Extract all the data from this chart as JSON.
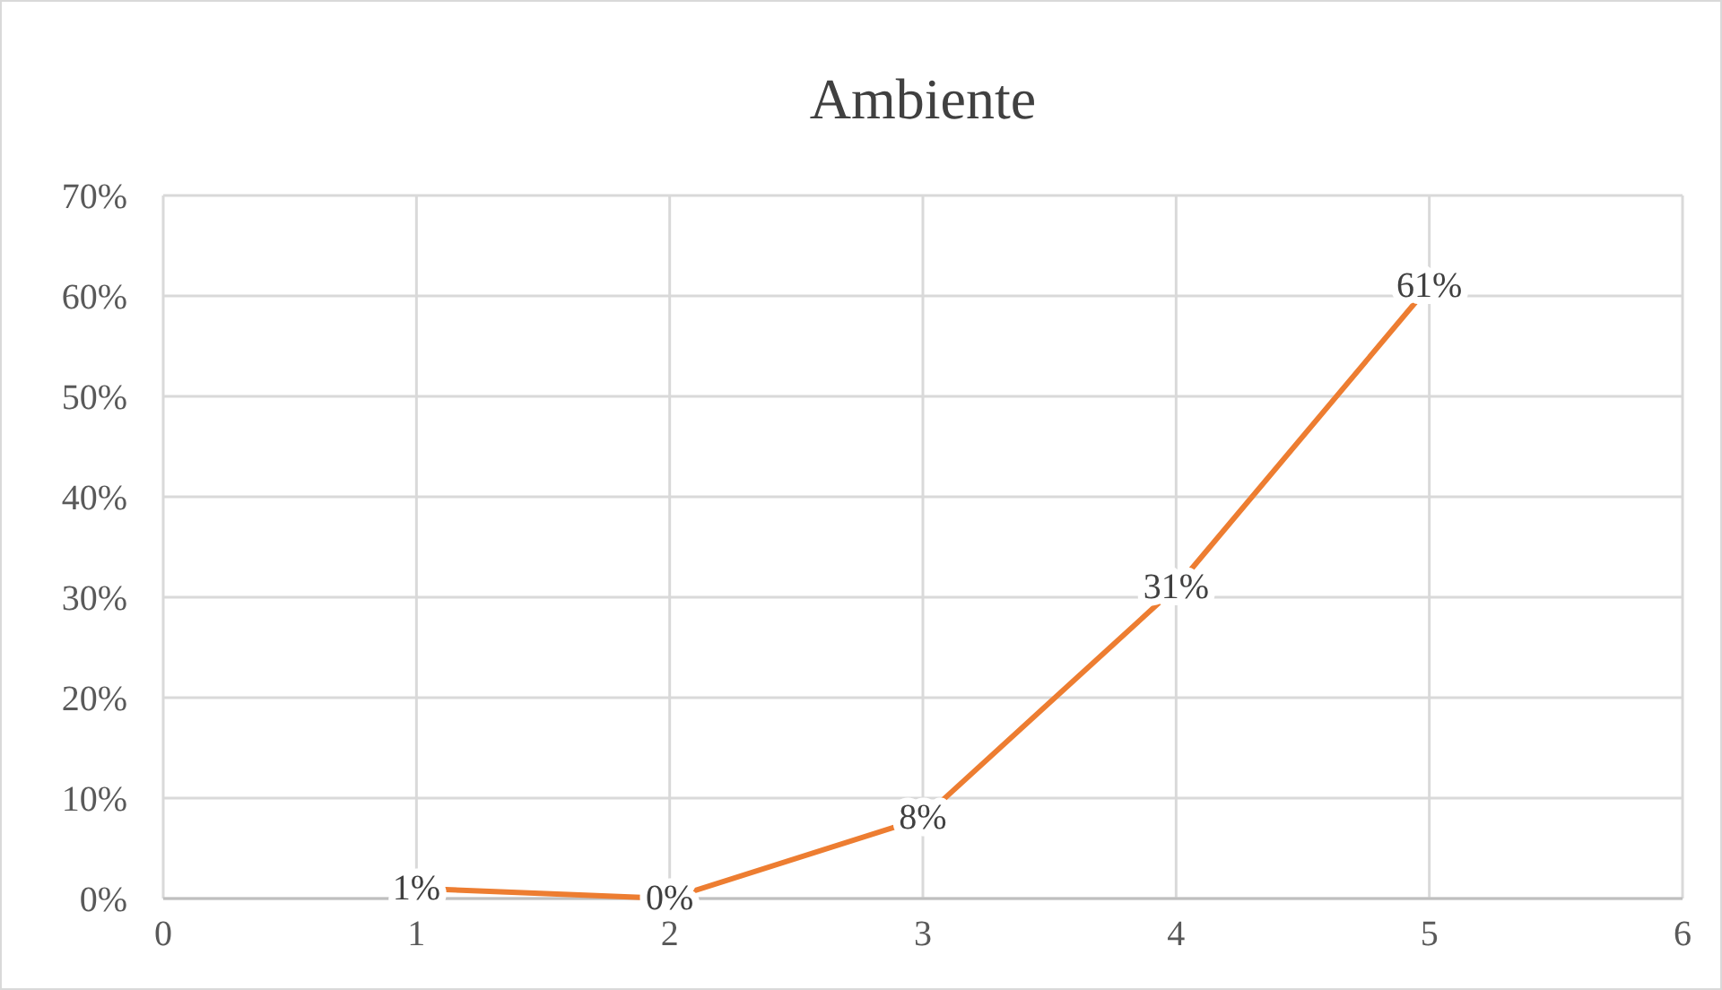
{
  "chart_data": {
    "type": "line",
    "title": "Ambiente",
    "x": [
      1,
      2,
      3,
      4,
      5
    ],
    "series": [
      {
        "color": "#ed7d31",
        "values": [
          1,
          0,
          8,
          31,
          61
        ],
        "value_labels": [
          "1%",
          "0%",
          "8%",
          "31%",
          "61%"
        ]
      }
    ],
    "xlim": [
      0,
      6
    ],
    "xticks": [
      0,
      1,
      2,
      3,
      4,
      5,
      6
    ],
    "ylim": [
      0,
      70
    ],
    "yticks": [
      {
        "value": 0,
        "label": "0%"
      },
      {
        "value": 10,
        "label": "10%"
      },
      {
        "value": 20,
        "label": "20%"
      },
      {
        "value": 30,
        "label": "30%"
      },
      {
        "value": 40,
        "label": "40%"
      },
      {
        "value": 50,
        "label": "50%"
      },
      {
        "value": 60,
        "label": "60%"
      },
      {
        "value": 70,
        "label": "70%"
      }
    ],
    "grid": true,
    "marker": "none",
    "line_style": "solid"
  }
}
